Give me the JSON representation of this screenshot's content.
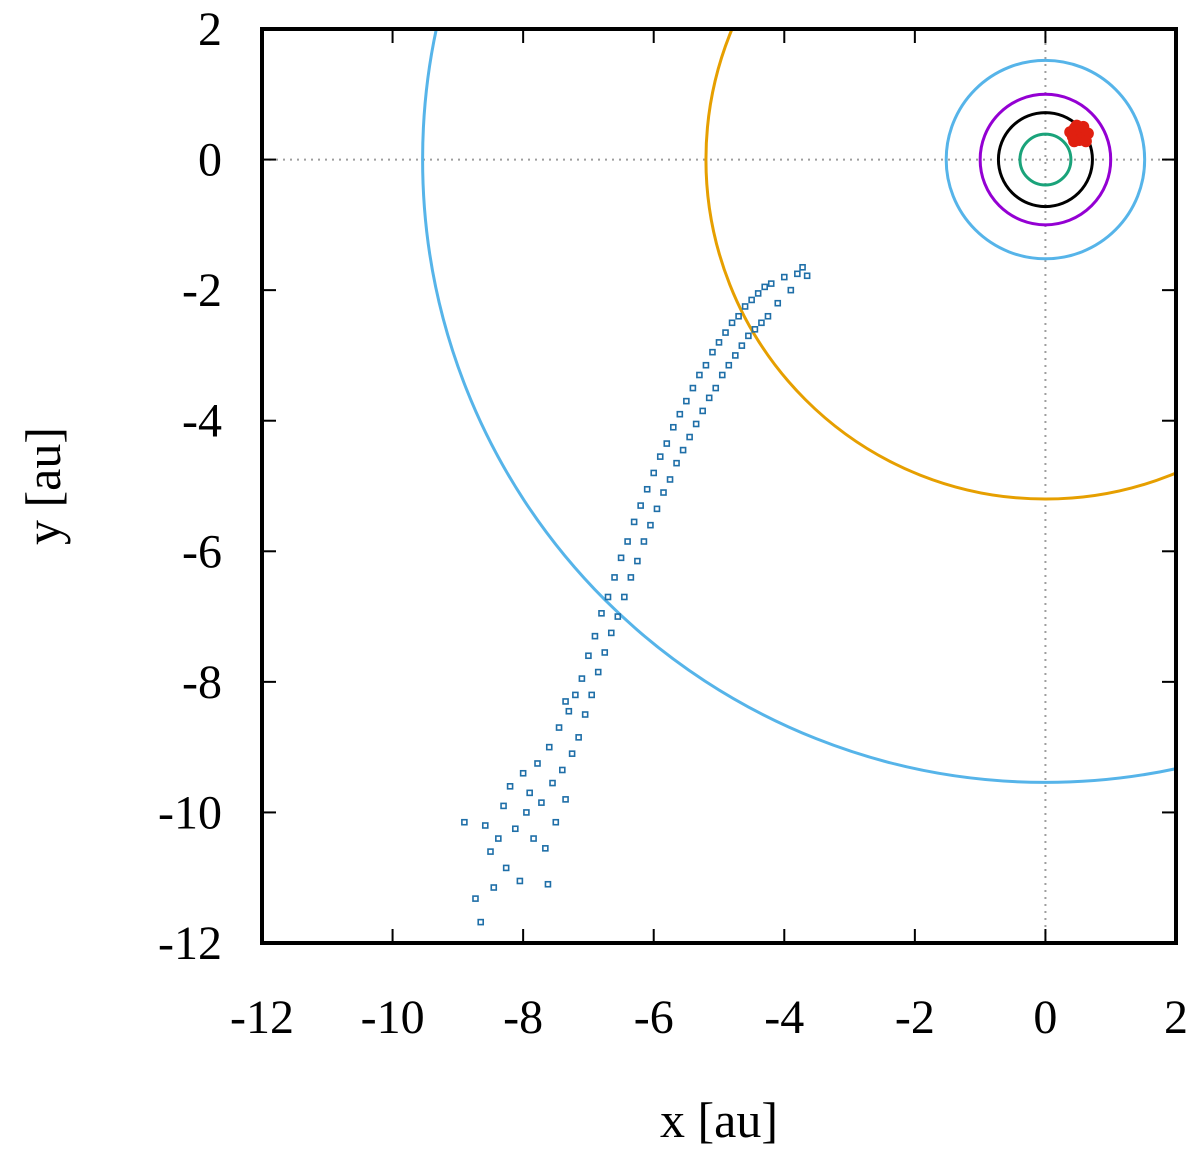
{
  "chart_data": {
    "type": "scatter",
    "title": "",
    "xlabel": "x [au]",
    "ylabel": "y [au]",
    "xlim": [
      -12,
      2
    ],
    "ylim": [
      -12,
      2
    ],
    "xticks": [
      -12,
      -10,
      -8,
      -6,
      -4,
      -2,
      0,
      2
    ],
    "yticks": [
      -12,
      -10,
      -8,
      -6,
      -4,
      -2,
      0,
      2
    ],
    "zero_lines": {
      "style": "dotted",
      "color": "#9e9e9e",
      "x": 0,
      "y": 0
    },
    "grid": false,
    "legend": "none",
    "orbits": [
      {
        "radius": 0.39,
        "color": "#1aa37a"
      },
      {
        "radius": 0.72,
        "color": "#000000"
      },
      {
        "radius": 1.0,
        "color": "#9400d3"
      },
      {
        "radius": 1.52,
        "color": "#56b4e9"
      },
      {
        "radius": 5.2,
        "color": "#e69f00"
      },
      {
        "radius": 9.54,
        "color": "#56b4e9"
      }
    ],
    "series": [
      {
        "marker": "square",
        "color": "#1f6fa8",
        "points": [
          [
            -8.73,
            -11.32
          ],
          [
            -8.65,
            -11.68
          ],
          [
            -8.58,
            -10.2
          ],
          [
            -8.5,
            -10.6
          ],
          [
            -8.45,
            -11.15
          ],
          [
            -8.38,
            -10.4
          ],
          [
            -8.3,
            -9.9
          ],
          [
            -8.26,
            -10.85
          ],
          [
            -8.2,
            -9.6
          ],
          [
            -8.12,
            -10.25
          ],
          [
            -8.05,
            -11.05
          ],
          [
            -8.0,
            -9.4
          ],
          [
            -7.95,
            -10.0
          ],
          [
            -7.9,
            -9.7
          ],
          [
            -7.84,
            -10.4
          ],
          [
            -7.78,
            -9.25
          ],
          [
            -7.72,
            -9.85
          ],
          [
            -7.66,
            -10.55
          ],
          [
            -7.6,
            -9.0
          ],
          [
            -7.55,
            -9.55
          ],
          [
            -7.5,
            -10.15
          ],
          [
            -7.45,
            -8.7
          ],
          [
            -7.4,
            -9.35
          ],
          [
            -7.35,
            -9.8
          ],
          [
            -7.3,
            -8.45
          ],
          [
            -7.25,
            -9.1
          ],
          [
            -7.2,
            -8.2
          ],
          [
            -7.15,
            -8.85
          ],
          [
            -7.1,
            -7.95
          ],
          [
            -7.05,
            -8.5
          ],
          [
            -7.0,
            -7.6
          ],
          [
            -6.95,
            -8.2
          ],
          [
            -6.9,
            -7.3
          ],
          [
            -6.85,
            -7.85
          ],
          [
            -6.8,
            -6.95
          ],
          [
            -6.75,
            -7.55
          ],
          [
            -6.7,
            -6.7
          ],
          [
            -6.65,
            -7.25
          ],
          [
            -6.6,
            -6.4
          ],
          [
            -6.55,
            -7.0
          ],
          [
            -6.5,
            -6.1
          ],
          [
            -6.45,
            -6.7
          ],
          [
            -6.4,
            -5.85
          ],
          [
            -6.35,
            -6.4
          ],
          [
            -6.3,
            -5.55
          ],
          [
            -6.25,
            -6.15
          ],
          [
            -6.2,
            -5.3
          ],
          [
            -6.15,
            -5.85
          ],
          [
            -6.1,
            -5.05
          ],
          [
            -6.05,
            -5.6
          ],
          [
            -6.0,
            -4.8
          ],
          [
            -5.95,
            -5.35
          ],
          [
            -5.9,
            -4.55
          ],
          [
            -5.85,
            -5.1
          ],
          [
            -5.8,
            -4.35
          ],
          [
            -5.75,
            -4.9
          ],
          [
            -5.7,
            -4.1
          ],
          [
            -5.65,
            -4.65
          ],
          [
            -5.6,
            -3.9
          ],
          [
            -5.55,
            -4.45
          ],
          [
            -5.5,
            -3.7
          ],
          [
            -5.45,
            -4.25
          ],
          [
            -5.4,
            -3.5
          ],
          [
            -5.35,
            -4.05
          ],
          [
            -5.3,
            -3.3
          ],
          [
            -5.25,
            -3.85
          ],
          [
            -5.2,
            -3.15
          ],
          [
            -5.15,
            -3.65
          ],
          [
            -5.1,
            -2.95
          ],
          [
            -5.05,
            -3.5
          ],
          [
            -5.0,
            -2.8
          ],
          [
            -4.95,
            -3.3
          ],
          [
            -4.9,
            -2.65
          ],
          [
            -4.85,
            -3.15
          ],
          [
            -4.8,
            -2.5
          ],
          [
            -4.75,
            -3.0
          ],
          [
            -4.7,
            -2.4
          ],
          [
            -4.65,
            -2.85
          ],
          [
            -4.6,
            -2.25
          ],
          [
            -4.55,
            -2.7
          ],
          [
            -4.5,
            -2.15
          ],
          [
            -4.45,
            -2.6
          ],
          [
            -4.4,
            -2.05
          ],
          [
            -4.35,
            -2.5
          ],
          [
            -4.3,
            -1.95
          ],
          [
            -4.25,
            -2.4
          ],
          [
            -4.2,
            -1.9
          ],
          [
            -4.1,
            -2.2
          ],
          [
            -4.0,
            -1.8
          ],
          [
            -3.9,
            -2.0
          ],
          [
            -3.8,
            -1.75
          ],
          [
            -3.65,
            -1.78
          ],
          [
            -3.72,
            -1.65
          ],
          [
            -7.62,
            -11.1
          ],
          [
            -8.9,
            -10.15
          ],
          [
            -7.35,
            -8.3
          ]
        ]
      },
      {
        "marker": "circle",
        "color": "#e02010",
        "points": [
          [
            0.38,
            0.42
          ],
          [
            0.42,
            0.35
          ],
          [
            0.45,
            0.48
          ],
          [
            0.5,
            0.38
          ],
          [
            0.55,
            0.45
          ],
          [
            0.6,
            0.34
          ],
          [
            0.48,
            0.52
          ],
          [
            0.58,
            0.5
          ],
          [
            0.65,
            0.4
          ],
          [
            0.52,
            0.3
          ],
          [
            0.44,
            0.28
          ],
          [
            0.62,
            0.28
          ]
        ]
      }
    ]
  }
}
